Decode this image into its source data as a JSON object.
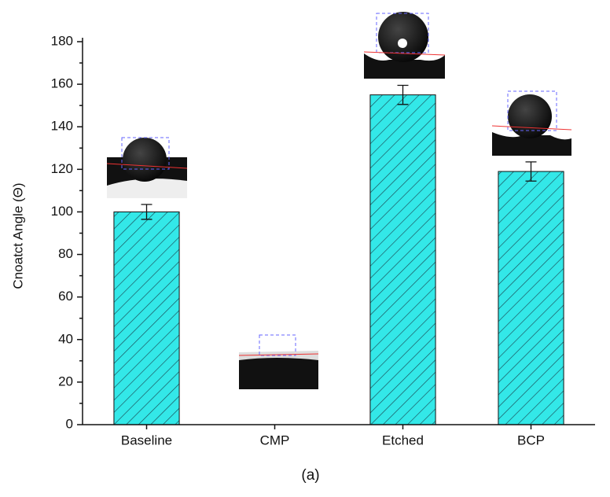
{
  "chart_data": {
    "type": "bar",
    "ylabel": "Cnoatct Angle (Θ)",
    "caption": "(a)",
    "categories": [
      "Baseline",
      "CMP",
      "Etched",
      "BCP"
    ],
    "values": [
      100,
      null,
      155,
      119
    ],
    "errors": [
      3.5,
      null,
      4.5,
      4.5
    ],
    "color": "#33e8e8",
    "hatch_color": "#1a4a55",
    "ylim": [
      0,
      180
    ],
    "yticks": [
      0,
      20,
      40,
      60,
      80,
      100,
      120,
      140,
      160,
      180
    ],
    "yminorticks": [
      10,
      30,
      50,
      70,
      90,
      110,
      130,
      150,
      170
    ]
  }
}
